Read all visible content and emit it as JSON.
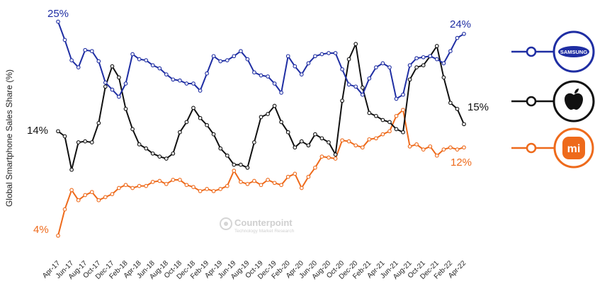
{
  "chart_data": {
    "type": "line",
    "title": "",
    "ylabel": "Global Smartphone Sales Share (%)",
    "xlabel": "",
    "ylim": [
      2,
      27
    ],
    "grid": false,
    "legend": "right",
    "watermark": {
      "name": "Counterpoint",
      "tagline": "Technology Market Research"
    },
    "x": [
      "Apr-17",
      "May-17",
      "Jun-17",
      "Jul-17",
      "Aug-17",
      "Sep-17",
      "Oct-17",
      "Nov-17",
      "Dec-17",
      "Jan-18",
      "Feb-18",
      "Mar-18",
      "Apr-18",
      "May-18",
      "Jun-18",
      "Jul-18",
      "Aug-18",
      "Sep-18",
      "Oct-18",
      "Nov-18",
      "Dec-18",
      "Jan-19",
      "Feb-19",
      "Mar-19",
      "Apr-19",
      "May-19",
      "Jun-19",
      "Jul-19",
      "Aug-19",
      "Sep-19",
      "Oct-19",
      "Nov-19",
      "Dec-19",
      "Jan-20",
      "Feb-20",
      "Mar-20",
      "Apr-20",
      "May-20",
      "Jun-20",
      "Jul-20",
      "Aug-20",
      "Sep-20",
      "Oct-20",
      "Nov-20",
      "Dec-20",
      "Jan-21",
      "Feb-21",
      "Mar-21",
      "Apr-21",
      "May-21",
      "Jun-21",
      "Jul-21",
      "Aug-21",
      "Sep-21",
      "Oct-21",
      "Nov-21",
      "Dec-21",
      "Jan-22",
      "Feb-22",
      "Mar-22",
      "Apr-22"
    ],
    "tick_labels": [
      "Apr-17",
      "Jun-17",
      "Aug-17",
      "Oct-17",
      "Dec-17",
      "Feb-18",
      "Apr-18",
      "Jun-18",
      "Aug-18",
      "Oct-18",
      "Dec-18",
      "Feb-19",
      "Apr-19",
      "Jun-19",
      "Aug-19",
      "Oct-19",
      "Dec-19",
      "Feb-20",
      "Apr-20",
      "Jun-20",
      "Aug-20",
      "Oct-20",
      "Dec-20",
      "Feb-21",
      "Apr-21",
      "Jun-21",
      "Aug-21",
      "Oct-21",
      "Dec-21",
      "Feb-22",
      "Apr-22"
    ],
    "series": [
      {
        "name": "Samsung",
        "brand_label": "SAMSUNG",
        "color": "#1f2ea3",
        "start_label": "25%",
        "end_label": "24%",
        "values": [
          25.0,
          23.2,
          21.2,
          20.5,
          22.2,
          22.1,
          21.1,
          19.0,
          18.3,
          17.6,
          18.9,
          21.8,
          21.3,
          21.2,
          20.7,
          20.4,
          19.8,
          19.3,
          19.2,
          18.9,
          18.9,
          18.2,
          19.9,
          21.6,
          21.1,
          21.2,
          21.6,
          22.1,
          21.3,
          20.0,
          19.7,
          19.6,
          18.9,
          18.0,
          21.6,
          20.6,
          19.8,
          20.9,
          21.6,
          21.8,
          21.9,
          21.9,
          20.3,
          18.8,
          18.6,
          17.8,
          19.4,
          20.5,
          20.9,
          20.5,
          17.4,
          17.8,
          20.7,
          21.4,
          21.5,
          21.6,
          21.3,
          20.9,
          22.1,
          23.4,
          23.8
        ]
      },
      {
        "name": "Apple",
        "brand_label": "",
        "color": "#111111",
        "start_label": "14%",
        "end_label": "15%",
        "values": [
          14.2,
          13.7,
          10.4,
          13.1,
          13.2,
          13.1,
          15.0,
          18.6,
          20.6,
          19.5,
          16.4,
          14.4,
          12.9,
          12.5,
          12.0,
          11.7,
          11.5,
          12.0,
          14.1,
          15.1,
          16.5,
          15.5,
          14.8,
          13.9,
          12.5,
          11.8,
          10.9,
          10.9,
          10.6,
          13.1,
          15.6,
          15.9,
          16.7,
          15.1,
          14.1,
          12.6,
          13.2,
          12.8,
          13.9,
          13.5,
          13.1,
          11.9,
          17.2,
          21.3,
          22.8,
          18.5,
          16.0,
          15.7,
          15.3,
          15.1,
          14.4,
          14.1,
          19.3,
          20.5,
          20.7,
          21.6,
          22.6,
          19.5,
          17.0,
          16.4,
          14.9
        ]
      },
      {
        "name": "Xiaomi",
        "brand_label": "mi",
        "color": "#ee6a1b",
        "start_label": "4%",
        "end_label": "12%",
        "values": [
          3.9,
          6.5,
          8.4,
          7.4,
          7.9,
          8.2,
          7.4,
          7.7,
          8.0,
          8.6,
          8.9,
          8.6,
          8.8,
          8.8,
          9.2,
          9.3,
          9.0,
          9.4,
          9.4,
          8.9,
          8.7,
          8.3,
          8.5,
          8.3,
          8.5,
          8.8,
          10.3,
          9.2,
          9.0,
          9.3,
          8.9,
          9.4,
          9.1,
          8.9,
          9.7,
          10.0,
          8.6,
          9.7,
          10.6,
          11.7,
          11.6,
          11.5,
          13.3,
          13.2,
          12.8,
          12.6,
          13.4,
          13.5,
          13.9,
          14.2,
          15.7,
          16.3,
          12.7,
          12.9,
          12.4,
          12.7,
          11.8,
          12.4,
          12.6,
          12.4,
          12.6
        ]
      }
    ]
  }
}
